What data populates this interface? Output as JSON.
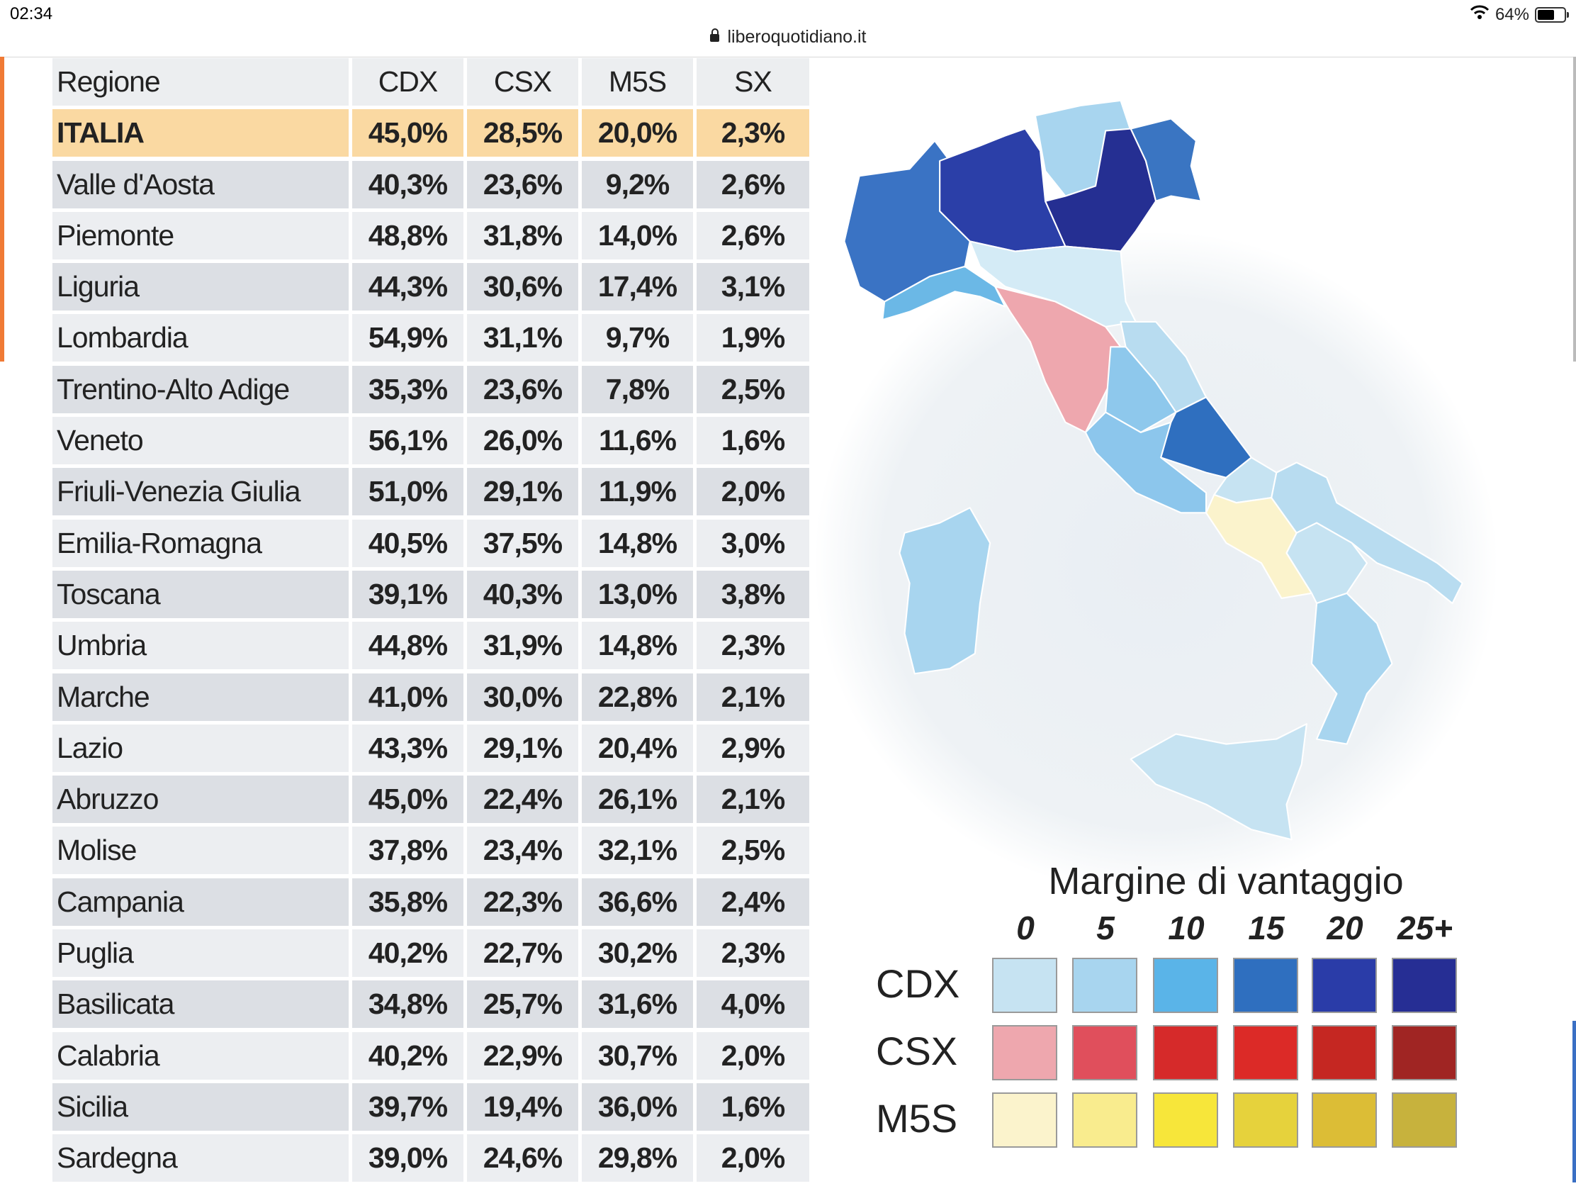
{
  "status_bar": {
    "time": "02:34",
    "battery": "64%",
    "battery_level": 0.64,
    "url": "liberoquotidiano.it"
  },
  "table": {
    "headers": [
      "Regione",
      "CDX",
      "CSX",
      "M5S",
      "SX"
    ],
    "rows": [
      [
        "ITALIA",
        "45,0%",
        "28,5%",
        "20,0%",
        "2,3%"
      ],
      [
        "Valle d'Aosta",
        "40,3%",
        "23,6%",
        "9,2%",
        "2,6%"
      ],
      [
        "Piemonte",
        "48,8%",
        "31,8%",
        "14,0%",
        "2,6%"
      ],
      [
        "Liguria",
        "44,3%",
        "30,6%",
        "17,4%",
        "3,1%"
      ],
      [
        "Lombardia",
        "54,9%",
        "31,1%",
        "9,7%",
        "1,9%"
      ],
      [
        "Trentino-Alto Adige",
        "35,3%",
        "23,6%",
        "7,8%",
        "2,5%"
      ],
      [
        "Veneto",
        "56,1%",
        "26,0%",
        "11,6%",
        "1,6%"
      ],
      [
        "Friuli-Venezia Giulia",
        "51,0%",
        "29,1%",
        "11,9%",
        "2,0%"
      ],
      [
        "Emilia-Romagna",
        "40,5%",
        "37,5%",
        "14,8%",
        "3,0%"
      ],
      [
        "Toscana",
        "39,1%",
        "40,3%",
        "13,0%",
        "3,8%"
      ],
      [
        "Umbria",
        "44,8%",
        "31,9%",
        "14,8%",
        "2,3%"
      ],
      [
        "Marche",
        "41,0%",
        "30,0%",
        "22,8%",
        "2,1%"
      ],
      [
        "Lazio",
        "43,3%",
        "29,1%",
        "20,4%",
        "2,9%"
      ],
      [
        "Abruzzo",
        "45,0%",
        "22,4%",
        "26,1%",
        "2,1%"
      ],
      [
        "Molise",
        "37,8%",
        "23,4%",
        "32,1%",
        "2,5%"
      ],
      [
        "Campania",
        "35,8%",
        "22,3%",
        "36,6%",
        "2,4%"
      ],
      [
        "Puglia",
        "40,2%",
        "22,7%",
        "30,2%",
        "2,3%"
      ],
      [
        "Basilicata",
        "34,8%",
        "25,7%",
        "31,6%",
        "4,0%"
      ],
      [
        "Calabria",
        "40,2%",
        "22,9%",
        "30,7%",
        "2,0%"
      ],
      [
        "Sicilia",
        "39,7%",
        "19,4%",
        "36,0%",
        "1,6%"
      ],
      [
        "Sardegna",
        "39,0%",
        "24,6%",
        "29,8%",
        "2,0%"
      ]
    ]
  },
  "legend": {
    "title": "Margine di vantaggio",
    "scale": [
      "0",
      "5",
      "10",
      "15",
      "20",
      "25+"
    ],
    "rows": [
      {
        "label": "CDX",
        "colors": [
          "#c6e3f2",
          "#a8d5ef",
          "#5ab4e8",
          "#2f6fbf",
          "#2a3ca8",
          "#262e94"
        ]
      },
      {
        "label": "CSX",
        "colors": [
          "#eea7ae",
          "#e04f5c",
          "#d62a2a",
          "#dc2a27",
          "#c52722",
          "#a02523"
        ]
      },
      {
        "label": "M5S",
        "colors": [
          "#fbf3cc",
          "#f9ec8e",
          "#f7e63a",
          "#e6d23c",
          "#dcbd36",
          "#c7b23d"
        ]
      }
    ]
  },
  "map_fills": {
    "piemonte": "#3a73c4",
    "lombardia": "#2b3fa8",
    "trentino": "#a8d5ef",
    "veneto": "#252f92",
    "friuli": "#3a75c2",
    "liguria": "#6bb8e6",
    "emilia": "#d4ebf6",
    "toscana": "#eea7ae",
    "marche": "#b8dcf0",
    "umbria": "#8ec8ec",
    "lazio": "#8cc6ec",
    "abruzzo": "#2f6fbf",
    "molise": "#c6e3f2",
    "campania": "#fbf3cc",
    "puglia": "#b8dcf0",
    "basilicata": "#c6e3f2",
    "calabria": "#a8d5ef",
    "sicilia": "#c6e3f2",
    "sardegna": "#a8d5ef"
  }
}
